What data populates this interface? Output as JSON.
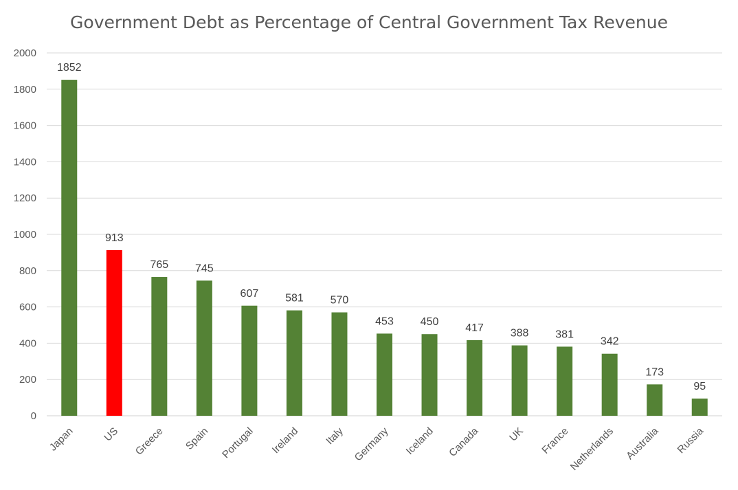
{
  "chart_data": {
    "type": "bar",
    "title": "Government Debt as Percentage of Central Government Tax Revenue",
    "categories": [
      "Japan",
      "US",
      "Greece",
      "Spain",
      "Portugal",
      "Ireland",
      "Italy",
      "Germany",
      "Iceland",
      "Canada",
      "UK",
      "France",
      "Netherlands",
      "Australia",
      "Russia"
    ],
    "values": [
      1852,
      913,
      765,
      745,
      607,
      581,
      570,
      453,
      450,
      417,
      388,
      381,
      342,
      173,
      95
    ],
    "data_labels": [
      "1852",
      "913",
      "765",
      "745",
      "607",
      "581",
      "570",
      "453",
      "450",
      "417",
      "388",
      "381",
      "342",
      "173",
      "95"
    ],
    "ylim": [
      0,
      2000
    ],
    "yticks": [
      0,
      200,
      400,
      600,
      800,
      1000,
      1200,
      1400,
      1600,
      1800,
      2000
    ],
    "ytick_labels": [
      "0",
      "200",
      "400",
      "600",
      "800",
      "1000",
      "1200",
      "1400",
      "1600",
      "1800",
      "2000"
    ],
    "xlabel": "",
    "ylabel": "",
    "grid": true,
    "legend": "none",
    "colors": {
      "default_bar": "#548235",
      "highlight_bar": "#ff0000",
      "gridline": "#d9d9d9",
      "axis_text": "#595959",
      "label_text": "#404040"
    },
    "highlight_category": "US"
  }
}
